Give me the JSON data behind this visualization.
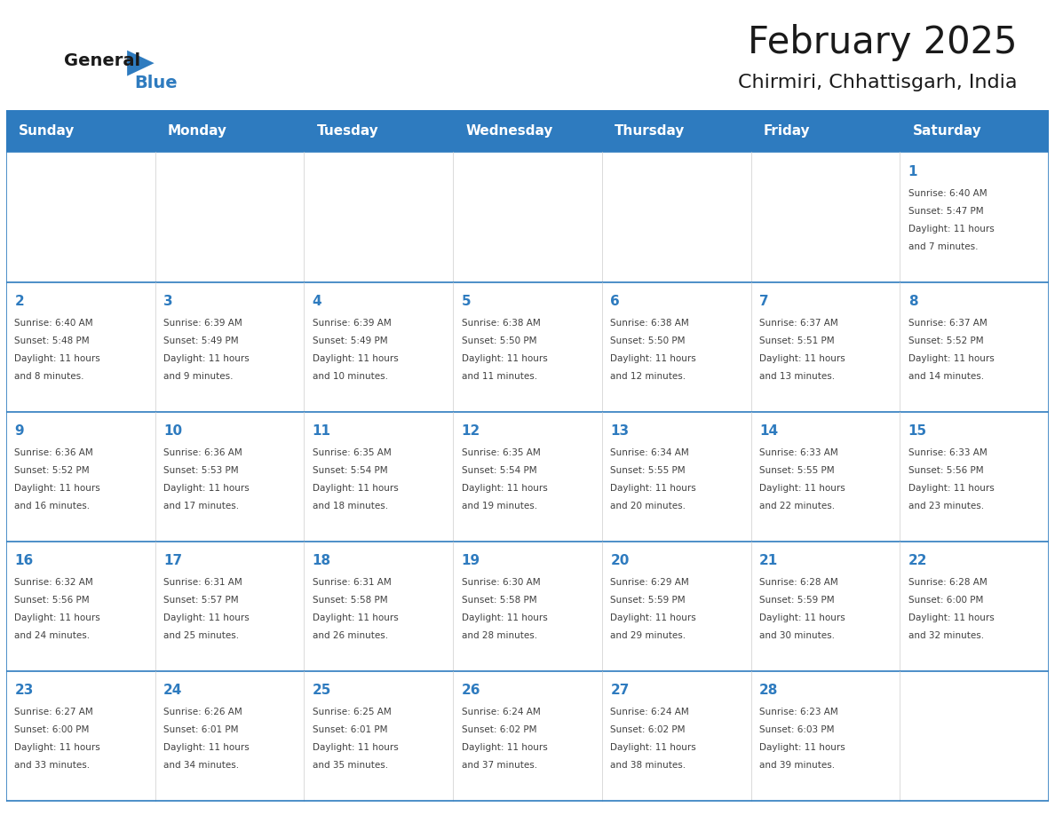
{
  "title": "February 2025",
  "subtitle": "Chirmiri, Chhattisgarh, India",
  "header_bg": "#2E7BBF",
  "header_text_color": "#FFFFFF",
  "day_names": [
    "Sunday",
    "Monday",
    "Tuesday",
    "Wednesday",
    "Thursday",
    "Friday",
    "Saturday"
  ],
  "background_color": "#FFFFFF",
  "cell_border_color": "#2E7BBF",
  "date_color": "#2E7BBF",
  "info_color": "#404040",
  "logo_general_color": "#1a1a1a",
  "logo_blue_color": "#2E7BBF",
  "title_color": "#1a1a1a",
  "subtitle_color": "#1a1a1a",
  "weeks": [
    [
      {
        "day": null,
        "info": ""
      },
      {
        "day": null,
        "info": ""
      },
      {
        "day": null,
        "info": ""
      },
      {
        "day": null,
        "info": ""
      },
      {
        "day": null,
        "info": ""
      },
      {
        "day": null,
        "info": ""
      },
      {
        "day": 1,
        "info": "Sunrise: 6:40 AM\nSunset: 5:47 PM\nDaylight: 11 hours\nand 7 minutes."
      }
    ],
    [
      {
        "day": 2,
        "info": "Sunrise: 6:40 AM\nSunset: 5:48 PM\nDaylight: 11 hours\nand 8 minutes."
      },
      {
        "day": 3,
        "info": "Sunrise: 6:39 AM\nSunset: 5:49 PM\nDaylight: 11 hours\nand 9 minutes."
      },
      {
        "day": 4,
        "info": "Sunrise: 6:39 AM\nSunset: 5:49 PM\nDaylight: 11 hours\nand 10 minutes."
      },
      {
        "day": 5,
        "info": "Sunrise: 6:38 AM\nSunset: 5:50 PM\nDaylight: 11 hours\nand 11 minutes."
      },
      {
        "day": 6,
        "info": "Sunrise: 6:38 AM\nSunset: 5:50 PM\nDaylight: 11 hours\nand 12 minutes."
      },
      {
        "day": 7,
        "info": "Sunrise: 6:37 AM\nSunset: 5:51 PM\nDaylight: 11 hours\nand 13 minutes."
      },
      {
        "day": 8,
        "info": "Sunrise: 6:37 AM\nSunset: 5:52 PM\nDaylight: 11 hours\nand 14 minutes."
      }
    ],
    [
      {
        "day": 9,
        "info": "Sunrise: 6:36 AM\nSunset: 5:52 PM\nDaylight: 11 hours\nand 16 minutes."
      },
      {
        "day": 10,
        "info": "Sunrise: 6:36 AM\nSunset: 5:53 PM\nDaylight: 11 hours\nand 17 minutes."
      },
      {
        "day": 11,
        "info": "Sunrise: 6:35 AM\nSunset: 5:54 PM\nDaylight: 11 hours\nand 18 minutes."
      },
      {
        "day": 12,
        "info": "Sunrise: 6:35 AM\nSunset: 5:54 PM\nDaylight: 11 hours\nand 19 minutes."
      },
      {
        "day": 13,
        "info": "Sunrise: 6:34 AM\nSunset: 5:55 PM\nDaylight: 11 hours\nand 20 minutes."
      },
      {
        "day": 14,
        "info": "Sunrise: 6:33 AM\nSunset: 5:55 PM\nDaylight: 11 hours\nand 22 minutes."
      },
      {
        "day": 15,
        "info": "Sunrise: 6:33 AM\nSunset: 5:56 PM\nDaylight: 11 hours\nand 23 minutes."
      }
    ],
    [
      {
        "day": 16,
        "info": "Sunrise: 6:32 AM\nSunset: 5:56 PM\nDaylight: 11 hours\nand 24 minutes."
      },
      {
        "day": 17,
        "info": "Sunrise: 6:31 AM\nSunset: 5:57 PM\nDaylight: 11 hours\nand 25 minutes."
      },
      {
        "day": 18,
        "info": "Sunrise: 6:31 AM\nSunset: 5:58 PM\nDaylight: 11 hours\nand 26 minutes."
      },
      {
        "day": 19,
        "info": "Sunrise: 6:30 AM\nSunset: 5:58 PM\nDaylight: 11 hours\nand 28 minutes."
      },
      {
        "day": 20,
        "info": "Sunrise: 6:29 AM\nSunset: 5:59 PM\nDaylight: 11 hours\nand 29 minutes."
      },
      {
        "day": 21,
        "info": "Sunrise: 6:28 AM\nSunset: 5:59 PM\nDaylight: 11 hours\nand 30 minutes."
      },
      {
        "day": 22,
        "info": "Sunrise: 6:28 AM\nSunset: 6:00 PM\nDaylight: 11 hours\nand 32 minutes."
      }
    ],
    [
      {
        "day": 23,
        "info": "Sunrise: 6:27 AM\nSunset: 6:00 PM\nDaylight: 11 hours\nand 33 minutes."
      },
      {
        "day": 24,
        "info": "Sunrise: 6:26 AM\nSunset: 6:01 PM\nDaylight: 11 hours\nand 34 minutes."
      },
      {
        "day": 25,
        "info": "Sunrise: 6:25 AM\nSunset: 6:01 PM\nDaylight: 11 hours\nand 35 minutes."
      },
      {
        "day": 26,
        "info": "Sunrise: 6:24 AM\nSunset: 6:02 PM\nDaylight: 11 hours\nand 37 minutes."
      },
      {
        "day": 27,
        "info": "Sunrise: 6:24 AM\nSunset: 6:02 PM\nDaylight: 11 hours\nand 38 minutes."
      },
      {
        "day": 28,
        "info": "Sunrise: 6:23 AM\nSunset: 6:03 PM\nDaylight: 11 hours\nand 39 minutes."
      },
      {
        "day": null,
        "info": ""
      }
    ]
  ]
}
